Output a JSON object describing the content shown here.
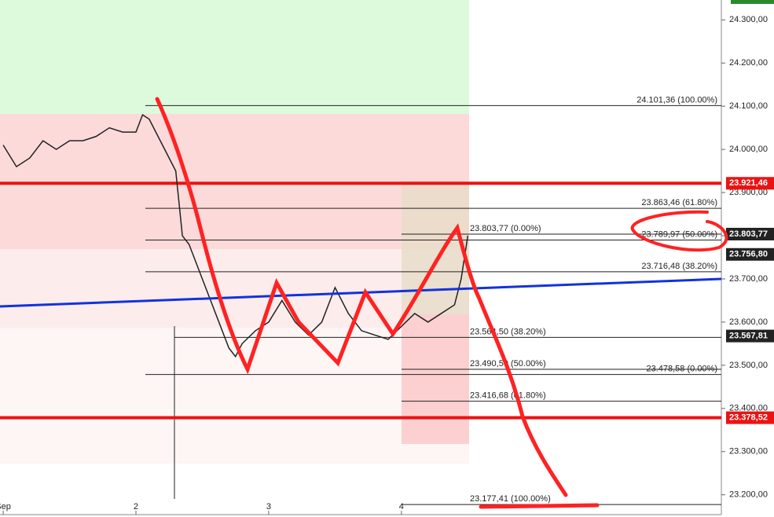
{
  "chart_data": {
    "type": "line",
    "x": [
      1.0,
      1.1,
      1.2,
      1.3,
      1.4,
      1.5,
      1.6,
      1.7,
      1.8,
      1.9,
      2.0,
      2.05,
      2.1,
      2.2,
      2.3,
      2.35,
      2.4,
      2.5,
      2.6,
      2.7,
      2.75,
      2.8,
      2.9,
      3.0,
      3.1,
      3.2,
      3.3,
      3.4,
      3.5,
      3.6,
      3.7,
      3.8,
      3.9,
      4.0,
      4.1,
      4.2,
      4.3,
      4.4,
      4.45,
      4.5
    ],
    "series": [
      {
        "color": "#222222",
        "values": [
          24010,
          23960,
          23980,
          24020,
          24000,
          24020,
          24020,
          24030,
          24050,
          24040,
          24040,
          24080,
          24070,
          24010,
          23950,
          23800,
          23780,
          23700,
          23620,
          23540,
          23520,
          23550,
          23580,
          23600,
          23650,
          23600,
          23570,
          23600,
          23680,
          23620,
          23580,
          23570,
          23560,
          23590,
          23620,
          23600,
          23620,
          23640,
          23700,
          23800
        ]
      }
    ],
    "xlim": [
      0.976,
      6.41
    ],
    "xticks": [
      {
        "value": 1,
        "label": "Sep"
      },
      2,
      3,
      4
    ],
    "ylim": [
      23154,
      24346
    ],
    "yticks": [
      {
        "value": 24300,
        "label": "24.300,00"
      },
      {
        "value": 24200,
        "label": "24.200,00"
      },
      {
        "value": 24100,
        "label": "24.100,00"
      },
      {
        "value": 24000,
        "label": "24.000,00"
      },
      {
        "value": 23900,
        "label": "23.900,00"
      },
      {
        "value": 23800,
        "label": "23.800,00"
      },
      {
        "value": 23700,
        "label": "23.700,00"
      },
      {
        "value": 23600,
        "label": "23.600,00"
      },
      {
        "value": 23500,
        "label": "23.500,00"
      },
      {
        "value": 23400,
        "label": "23.400,00"
      },
      {
        "value": 23300,
        "label": "23.300,00"
      },
      {
        "value": 23200,
        "label": "23.200,00"
      }
    ],
    "levels": [
      {
        "value": 24101.36,
        "label": "24.101,36 (100.00%)"
      },
      {
        "value": 23863.46,
        "label": "23.863,46 (61.80%)"
      },
      {
        "value": 23803.77,
        "label": "23.803,77 (0.00%)"
      },
      {
        "value": 23789.97,
        "label": "23.789,97 (50.00%)"
      },
      {
        "value": 23716.48,
        "label": "23.716,48 (38.20%)"
      },
      {
        "value": 23564.5,
        "label": "23.564,50 (38.20%)"
      },
      {
        "value": 23490.59,
        "label": "23.490,59 (50.00%)"
      },
      {
        "value": 23478.58,
        "label": "23.478,58 (0.00%)"
      },
      {
        "value": 23416.68,
        "label": "23.416,68 (61.80%)"
      },
      {
        "value": 23177.41,
        "label": "23.177,41 (100.00%)"
      }
    ],
    "price_tags": [
      {
        "value": 23921.46,
        "label": "23.921,46",
        "color": "#ee1111"
      },
      {
        "value": 23803.77,
        "label": "23.803,77",
        "color": "#222222"
      },
      {
        "value": 23756.8,
        "label": "23.756,80",
        "color": "#222222"
      },
      {
        "value": 23567.81,
        "label": "23.567,81",
        "color": "#222222"
      },
      {
        "value": 23378.52,
        "label": "23.378,52",
        "color": "#ee1111"
      }
    ]
  }
}
